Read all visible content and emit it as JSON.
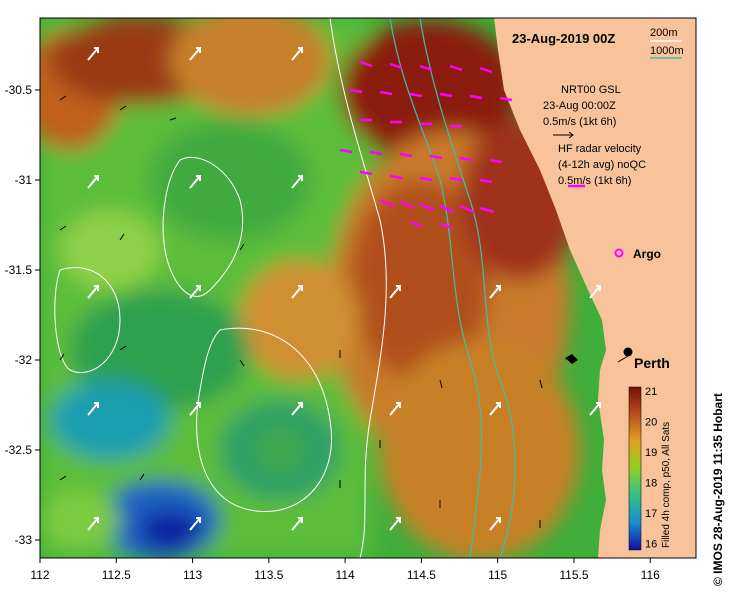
{
  "title": "23-Aug-2019 00Z",
  "depth_legend": {
    "labels": [
      "200m",
      "1000m"
    ],
    "colors": [
      "#ffffff",
      "#3fbfa8"
    ]
  },
  "wind_legend": {
    "line1": "NRT00 GSL",
    "line2": "23-Aug 00:00Z",
    "line3": "0.5m/s (1kt 6h)"
  },
  "radar_legend": {
    "line1": "HF radar velocity",
    "line2": "(4-12h avg) noQC",
    "line3": "0.5m/s (1kt 6h)",
    "color": "#ff00ff"
  },
  "argo_label": "Argo",
  "city_label": "Perth",
  "colorbar": {
    "ticks": [
      "21",
      "20",
      "19",
      "18",
      "17",
      "16"
    ],
    "caption": "Filled 4h comp, p50, All Sats"
  },
  "credit": "© IMOS 28-Aug-2019 11:35 Hobart",
  "axes": {
    "x_ticks": [
      "112",
      "112.5",
      "113",
      "113.5",
      "114",
      "114.5",
      "115",
      "115.5",
      "116"
    ],
    "y_ticks": [
      "-30.5",
      "-31",
      "-31.5",
      "-32",
      "-32.5",
      "-33"
    ]
  },
  "colors": {
    "land": "#f8c39a",
    "warm": "#8b1a10",
    "mid": "#c87a2a",
    "green": "#3fae3a",
    "cool": "#1a8fbf",
    "cold": "#1020a0"
  }
}
